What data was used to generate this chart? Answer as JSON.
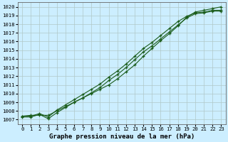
{
  "title": "Graphe pression niveau de la mer (hPa)",
  "bg_color": "#cceeff",
  "grid_color": "#b0c8c8",
  "line_color": "#1a5c1a",
  "xlim": [
    -0.5,
    23.5
  ],
  "ylim": [
    1006.5,
    1020.5
  ],
  "xticks": [
    0,
    1,
    2,
    3,
    4,
    5,
    6,
    7,
    8,
    9,
    10,
    11,
    12,
    13,
    14,
    15,
    16,
    17,
    18,
    19,
    20,
    21,
    22,
    23
  ],
  "yticks": [
    1007,
    1008,
    1009,
    1010,
    1011,
    1012,
    1013,
    1014,
    1015,
    1016,
    1017,
    1018,
    1019,
    1020
  ],
  "line1_x": [
    0,
    1,
    2,
    3,
    4,
    5,
    6,
    7,
    8,
    9,
    10,
    11,
    12,
    13,
    14,
    15,
    16,
    17,
    18,
    19,
    20,
    21,
    22,
    23
  ],
  "line1_y": [
    1007.3,
    1007.3,
    1007.6,
    1007.1,
    1007.8,
    1008.4,
    1009.0,
    1009.5,
    1010.1,
    1010.7,
    1011.5,
    1012.2,
    1013.0,
    1013.9,
    1014.8,
    1015.5,
    1016.3,
    1017.1,
    1017.9,
    1018.7,
    1019.2,
    1019.3,
    1019.5,
    1019.5
  ],
  "line2_x": [
    0,
    1,
    2,
    3,
    4,
    5,
    6,
    7,
    8,
    9,
    10,
    11,
    12,
    13,
    14,
    15,
    16,
    17,
    18,
    19,
    20,
    21,
    22,
    23
  ],
  "line2_y": [
    1007.4,
    1007.4,
    1007.7,
    1007.3,
    1008.1,
    1008.7,
    1009.3,
    1009.9,
    1010.5,
    1011.1,
    1011.9,
    1012.6,
    1013.4,
    1014.3,
    1015.2,
    1015.9,
    1016.7,
    1017.5,
    1018.3,
    1018.9,
    1019.3,
    1019.4,
    1019.6,
    1019.6
  ],
  "line3_x": [
    0,
    1,
    2,
    3,
    4,
    5,
    6,
    7,
    8,
    9,
    10,
    11,
    12,
    13,
    14,
    15,
    16,
    17,
    18,
    19,
    20,
    21,
    22,
    23
  ],
  "line3_y": [
    1007.4,
    1007.5,
    1007.5,
    1007.5,
    1008.0,
    1008.5,
    1009.0,
    1009.5,
    1010.0,
    1010.5,
    1011.0,
    1011.7,
    1012.5,
    1013.3,
    1014.3,
    1015.2,
    1016.1,
    1016.9,
    1017.8,
    1018.8,
    1019.4,
    1019.6,
    1019.8,
    1020.0
  ],
  "marker": "+",
  "markersize": 3.5,
  "linewidth": 0.8,
  "title_fontsize": 6.5,
  "tick_fontsize": 5.2
}
